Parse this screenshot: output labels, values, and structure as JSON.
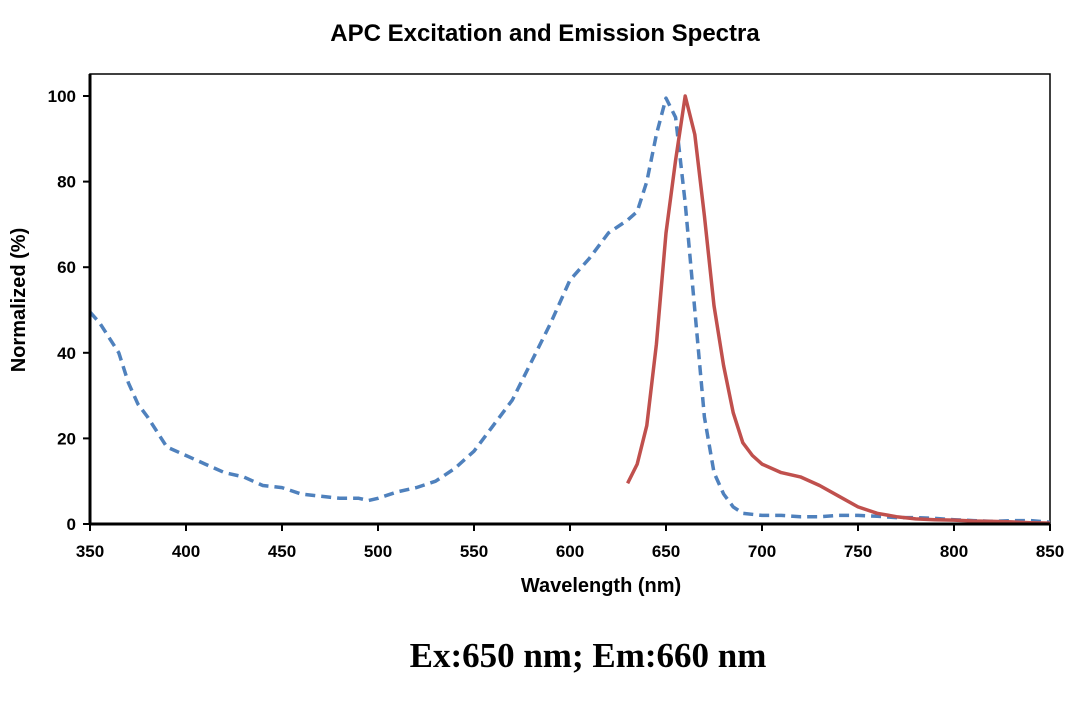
{
  "chart_data": {
    "type": "line",
    "title": "APC Excitation and Emission Spectra",
    "xlabel": "Wavelength (nm)",
    "ylabel": "Normalized (%)",
    "xlim": [
      350,
      850
    ],
    "ylim": [
      0,
      100
    ],
    "xticks": [
      350,
      400,
      450,
      500,
      550,
      600,
      650,
      700,
      750,
      800,
      850
    ],
    "yticks": [
      0,
      20,
      40,
      60,
      80,
      100
    ],
    "grid": false,
    "legend": "none",
    "series": [
      {
        "style": "dashed",
        "color": "#4F81BD",
        "x": [
          350,
          355,
          365,
          370,
          375,
          380,
          390,
          400,
          410,
          420,
          430,
          440,
          450,
          460,
          470,
          480,
          490,
          495,
          500,
          510,
          520,
          530,
          540,
          550,
          560,
          570,
          580,
          590,
          600,
          610,
          620,
          630,
          635,
          640,
          645,
          650,
          655,
          660,
          665,
          670,
          675,
          680,
          685,
          690,
          700,
          710,
          720,
          730,
          740,
          750,
          760,
          770,
          780,
          790,
          800,
          810,
          820,
          830,
          840,
          850
        ],
        "y": [
          49.5,
          47,
          40,
          33,
          28,
          25,
          18,
          16,
          14,
          12,
          11,
          9,
          8.5,
          7,
          6.5,
          6,
          6,
          5.5,
          6,
          7.5,
          8.5,
          10,
          13,
          17,
          23,
          29,
          38,
          47,
          57,
          62,
          68,
          71,
          73,
          80,
          91,
          99.5,
          95,
          75,
          50,
          25,
          12,
          7,
          4,
          2.5,
          2,
          2,
          1.7,
          1.7,
          2,
          2,
          1.8,
          1.5,
          1.5,
          1.3,
          1,
          0.8,
          0.6,
          0.8,
          0.8,
          0.4
        ]
      },
      {
        "style": "solid",
        "color": "#C0504D",
        "x": [
          630,
          635,
          640,
          645,
          650,
          655,
          660,
          665,
          670,
          675,
          680,
          685,
          690,
          695,
          700,
          710,
          720,
          730,
          740,
          750,
          760,
          770,
          780,
          790,
          800,
          810,
          820,
          830,
          840,
          850
        ],
        "y": [
          9.5,
          14,
          23,
          42,
          68,
          85,
          100,
          91,
          72,
          51,
          37,
          26,
          19,
          16,
          14,
          12,
          11,
          9,
          6.5,
          4,
          2.5,
          1.7,
          1.2,
          1,
          0.9,
          0.7,
          0.6,
          0.5,
          0.3,
          0.2
        ]
      }
    ]
  },
  "footer_note": "Ex:650 nm; Em:660 nm"
}
